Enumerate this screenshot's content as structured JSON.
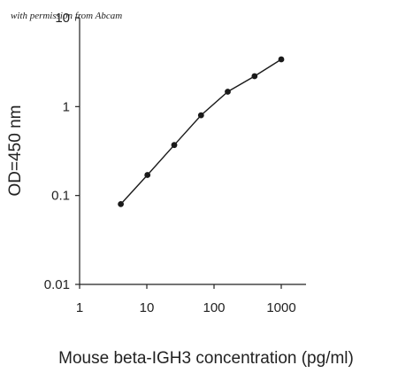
{
  "watermark": "with permission from Abcam",
  "chart_data": {
    "type": "line",
    "title": "",
    "xlabel": "Mouse beta-IGH3 concentration (pg/ml)",
    "ylabel": "OD=450 nm",
    "xscale": "log",
    "yscale": "log",
    "xlim": [
      1,
      1000
    ],
    "ylim": [
      0.01,
      10
    ],
    "xticks": [
      1,
      10,
      100,
      1000
    ],
    "xtick_labels": [
      "1",
      "10",
      "100",
      "1000"
    ],
    "yticks": [
      0.01,
      0.1,
      1,
      10
    ],
    "ytick_labels": [
      "0.01",
      "0.1",
      "1",
      "10"
    ],
    "grid": false,
    "legend": "none",
    "series": [
      {
        "x": [
          4.1,
          10.2,
          25.6,
          64,
          160,
          400,
          1000
        ],
        "y": [
          0.08,
          0.17,
          0.37,
          0.8,
          1.47,
          2.2,
          3.4
        ],
        "color": "#1a1a1a",
        "marker": "circle"
      }
    ]
  }
}
